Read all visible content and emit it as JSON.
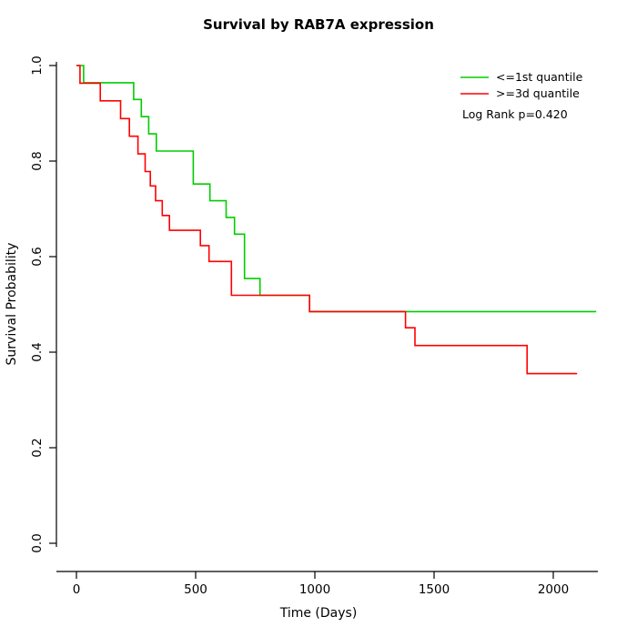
{
  "chart_data": {
    "type": "line",
    "subtype": "kaplan-meier-step",
    "title": "Survival by RAB7A expression",
    "xlabel": "Time (Days)",
    "ylabel": "Survival Probability",
    "xlim": [
      0,
      2200
    ],
    "ylim": [
      0.0,
      1.0
    ],
    "x_ticks": [
      0,
      500,
      1000,
      1500,
      2000
    ],
    "y_ticks": [
      0.0,
      0.2,
      0.4,
      0.6,
      0.8,
      1.0
    ],
    "grid": false,
    "legend_position": "top-right",
    "annotation": "Log Rank p=0.420",
    "axis_color": "#000000",
    "series": [
      {
        "name": "<=1st quantile",
        "color": "#00CD00",
        "end_time": 2180,
        "steps": [
          [
            0,
            1.0
          ],
          [
            30,
            0.964
          ],
          [
            240,
            0.929
          ],
          [
            272,
            0.893
          ],
          [
            303,
            0.857
          ],
          [
            335,
            0.821
          ],
          [
            490,
            0.752
          ],
          [
            560,
            0.717
          ],
          [
            628,
            0.682
          ],
          [
            663,
            0.647
          ],
          [
            705,
            0.554
          ],
          [
            770,
            0.519
          ],
          [
            978,
            0.485
          ]
        ]
      },
      {
        "name": ">=3d quantile",
        "color": "#FF0000",
        "end_time": 2100,
        "steps": [
          [
            0,
            1.0
          ],
          [
            15,
            0.963
          ],
          [
            100,
            0.926
          ],
          [
            185,
            0.889
          ],
          [
            222,
            0.852
          ],
          [
            258,
            0.815
          ],
          [
            288,
            0.778
          ],
          [
            310,
            0.748
          ],
          [
            332,
            0.717
          ],
          [
            360,
            0.686
          ],
          [
            390,
            0.655
          ],
          [
            520,
            0.623
          ],
          [
            556,
            0.59
          ],
          [
            650,
            0.519
          ],
          [
            978,
            0.485
          ],
          [
            1380,
            0.451
          ],
          [
            1420,
            0.414
          ],
          [
            1890,
            0.355
          ]
        ]
      }
    ]
  }
}
